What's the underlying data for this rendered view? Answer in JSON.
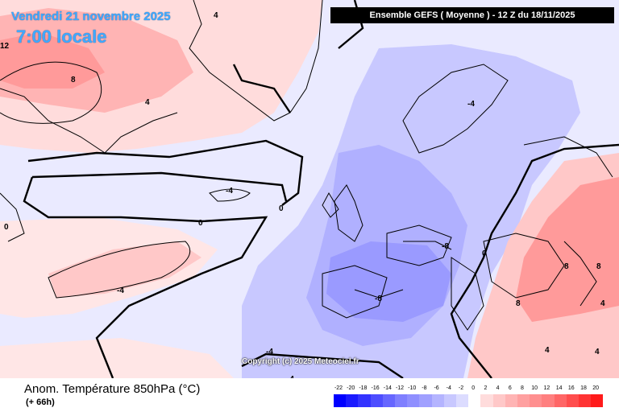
{
  "header": {
    "date": "Vendredi 21 novembre 2025",
    "time": "7:00 locale",
    "run": "Ensemble GEFS  ( Moyenne )  -  12 Z du 18/11/2025"
  },
  "footer": {
    "title": "Anom. Température 850hPa (°C)",
    "subtitle": "(+ 66h)",
    "copyright": "Copyright (c) 2025 Meteociel.fr"
  },
  "legend": {
    "labels": [
      "-22",
      "-20",
      "-18",
      "-16",
      "-14",
      "-12",
      "-10",
      "-8",
      "-6",
      "-4",
      "-2",
      "0",
      "2",
      "4",
      "6",
      "8",
      "10",
      "12",
      "14",
      "16",
      "18",
      "20"
    ],
    "colors": [
      "#0000ff",
      "#1a1aff",
      "#3333ff",
      "#4d4dff",
      "#6666ff",
      "#7f7fff",
      "#8f8fff",
      "#a0a0ff",
      "#b4b4ff",
      "#c8c8ff",
      "#dcdcff",
      "#ffffff",
      "#ffdcdc",
      "#ffc8c8",
      "#ffb4b4",
      "#ffa0a0",
      "#ff8f8f",
      "#ff7f7f",
      "#ff6666",
      "#ff4d4d",
      "#ff3333",
      "#ff1a1a"
    ]
  },
  "contour_labels": [
    {
      "text": "4"
    },
    {
      "text": "8"
    },
    {
      "text": "4"
    },
    {
      "text": "-4"
    },
    {
      "text": "0"
    },
    {
      "text": "0"
    },
    {
      "text": "-4"
    },
    {
      "text": "-4"
    },
    {
      "text": "-8"
    },
    {
      "text": "-8"
    },
    {
      "text": "0"
    },
    {
      "text": "8"
    },
    {
      "text": "8"
    },
    {
      "text": "8"
    },
    {
      "text": "4"
    },
    {
      "text": "4"
    },
    {
      "text": "-4"
    },
    {
      "text": "-4"
    },
    {
      "text": "0"
    },
    {
      "text": "12"
    },
    {
      "text": "4"
    }
  ]
}
